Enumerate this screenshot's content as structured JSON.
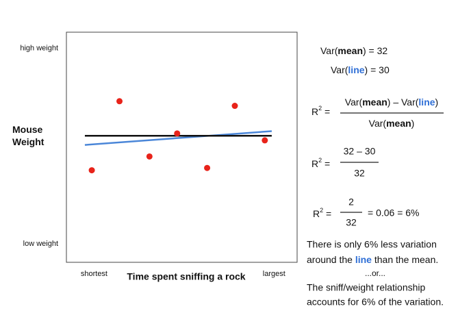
{
  "chart_data": {
    "type": "scatter",
    "y_label": [
      "Mouse",
      "Weight"
    ],
    "x_label": "Time spent sniffing a rock",
    "x": [
      1.1,
      2.3,
      3.6,
      4.8,
      6.1,
      7.3,
      8.6
    ],
    "values": [
      4.0,
      7.0,
      4.6,
      5.6,
      4.1,
      6.8,
      5.3
    ],
    "color": "#e8231a",
    "xlim": [
      0,
      10
    ],
    "ylim": [
      0,
      10
    ],
    "xticks": [
      {
        "value": 1.2,
        "label": "shortest"
      },
      {
        "value": 9.0,
        "label": "largest"
      }
    ],
    "yticks": [
      {
        "value": 0.8,
        "label": "low weight"
      },
      {
        "value": 9.3,
        "label": "high weight"
      }
    ],
    "lines": [
      {
        "color": "#4a86d8",
        "x": [
          0.8,
          8.9
        ],
        "y": [
          5.1,
          5.7
        ]
      },
      {
        "color": "#111111",
        "x": [
          0.8,
          8.9
        ],
        "y": [
          5.5,
          5.5
        ]
      }
    ]
  },
  "equations": {
    "var_mean": [
      "Var(",
      "mean",
      ") = 32"
    ],
    "var_line": [
      "Var(",
      "line",
      ") = 30"
    ],
    "formula1": {
      "lhs": [
        "R",
        "2",
        " ="
      ],
      "num": [
        "Var(",
        "mean",
        ") – Var(",
        "line",
        ")"
      ],
      "den": [
        "Var(",
        "mean",
        ")"
      ]
    },
    "formula2": {
      "lhs": [
        "R",
        "2",
        " ="
      ],
      "num": "32 – 30",
      "den": "32"
    },
    "formula3": {
      "lhs": [
        "R",
        "2",
        " ="
      ],
      "num": "2",
      "den": "32",
      "rhs": "= 0.06 = 6%"
    }
  },
  "conclusion": {
    "line1": "There is only 6% less variation",
    "line2": [
      "around the ",
      "line",
      " than the mean."
    ],
    "line3": "...or...",
    "line4": "The sniff/weight relationship",
    "line5": "accounts for 6% of the variation."
  }
}
